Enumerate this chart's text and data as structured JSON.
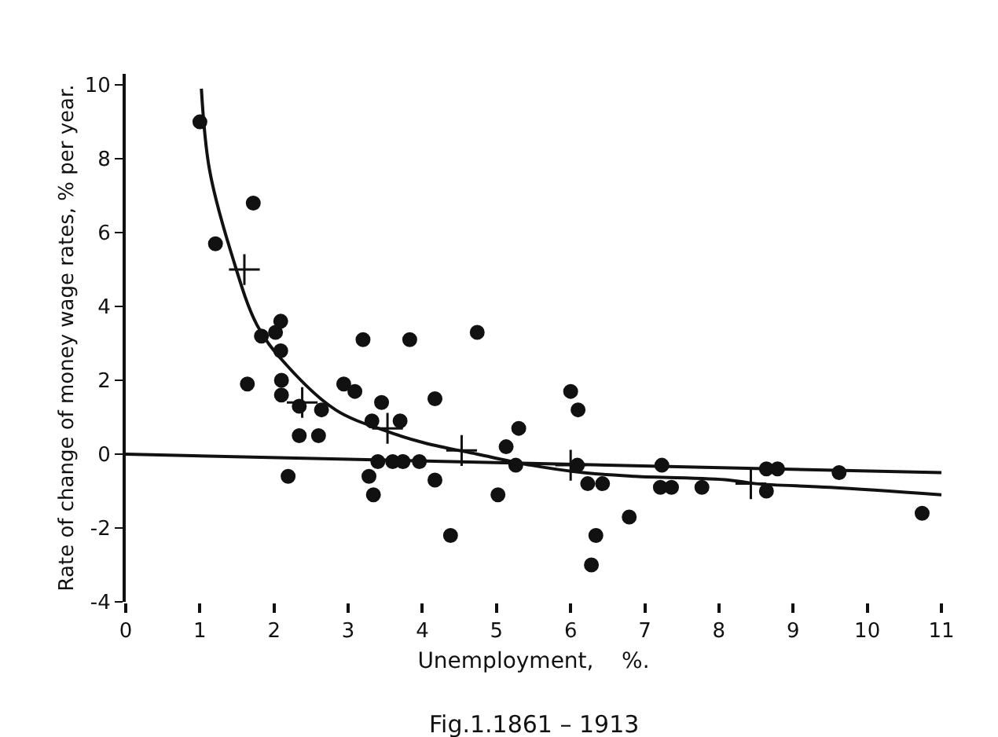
{
  "chart_data": {
    "type": "scatter",
    "xlabel": "Unemployment,    %.",
    "ylabel": "Rate of change of money wage rates, % per year.",
    "annotations": [
      "Fig.1.1861 – 1913"
    ],
    "xlim": [
      0,
      11
    ],
    "xticks": [
      0,
      1,
      2,
      3,
      4,
      5,
      6,
      7,
      8,
      9,
      10,
      11
    ],
    "ylim": [
      -4,
      10.3
    ],
    "yticks": [
      -4,
      -2,
      0,
      2,
      4,
      6,
      8,
      10
    ],
    "grid": false,
    "series": [
      {
        "marker": "circle",
        "color": "#111111",
        "x": [
          1.0,
          1.21,
          1.72,
          1.64,
          1.83,
          2.02,
          2.09,
          2.09,
          2.1,
          2.1,
          2.34,
          2.64,
          2.34,
          2.6,
          2.19,
          2.94,
          3.09,
          3.2,
          3.83,
          3.45,
          3.32,
          3.7,
          3.4,
          3.6,
          3.74,
          3.96,
          3.28,
          3.34,
          4.17,
          4.17,
          4.38,
          4.74,
          5.02,
          5.13,
          5.3,
          5.26,
          6.0,
          6.1,
          6.09,
          6.23,
          6.43,
          6.34,
          6.28,
          6.79,
          7.23,
          7.21,
          7.36,
          7.77,
          8.64,
          8.79,
          8.64,
          9.62,
          10.74
        ],
        "values": [
          9.0,
          5.7,
          6.8,
          1.9,
          3.2,
          3.3,
          3.6,
          2.8,
          2.0,
          1.6,
          1.3,
          1.2,
          0.5,
          0.5,
          -0.6,
          1.9,
          1.7,
          3.1,
          3.1,
          1.4,
          0.9,
          0.9,
          -0.2,
          -0.2,
          -0.2,
          -0.2,
          -0.6,
          -1.1,
          1.5,
          -0.7,
          -2.2,
          3.3,
          -1.1,
          0.2,
          0.7,
          -0.3,
          1.7,
          1.2,
          -0.3,
          -0.8,
          -0.8,
          -2.2,
          -3.0,
          -1.7,
          -0.3,
          -0.9,
          -0.9,
          -0.9,
          -0.4,
          -0.4,
          -1.0,
          -0.5,
          -1.6
        ]
      },
      {
        "marker": "cross",
        "color": "#111111",
        "x": [
          1.6,
          2.38,
          3.53,
          4.53,
          6.0,
          8.43
        ],
        "values": [
          5.0,
          1.4,
          0.7,
          0.1,
          -0.3,
          -0.8
        ]
      },
      {
        "type": "line",
        "marker": "none",
        "color": "#111111",
        "x": [
          1.02,
          1.13,
          1.43,
          1.77,
          2.13,
          2.83,
          3.55,
          4.04,
          4.74,
          5.47,
          6.17,
          6.87,
          8.13,
          8.5,
          9.5,
          11.0
        ],
        "values": [
          9.9,
          7.7,
          5.4,
          3.5,
          2.5,
          1.2,
          0.6,
          0.3,
          0.0,
          -0.3,
          -0.5,
          -0.6,
          -0.7,
          -0.8,
          -0.9,
          -1.1
        ]
      },
      {
        "type": "line",
        "marker": "none",
        "color": "#111111",
        "x": [
          0,
          11
        ],
        "values": [
          0.0,
          -0.5
        ]
      }
    ]
  }
}
